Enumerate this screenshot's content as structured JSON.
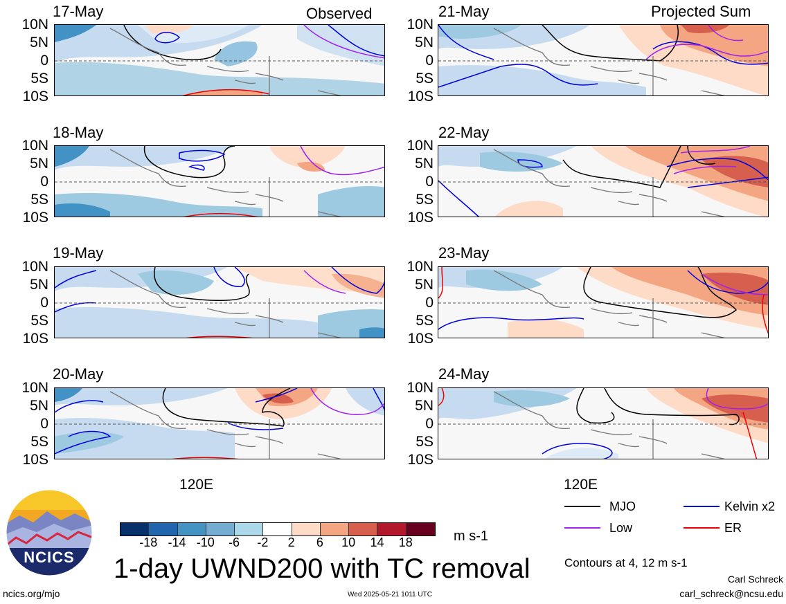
{
  "header": {
    "left": "Observed",
    "right": "Projected Sum"
  },
  "panels": [
    {
      "date": "17-May"
    },
    {
      "date": "18-May"
    },
    {
      "date": "19-May"
    },
    {
      "date": "20-May"
    },
    {
      "date": "21-May"
    },
    {
      "date": "22-May"
    },
    {
      "date": "23-May"
    },
    {
      "date": "24-May"
    }
  ],
  "lat_labels": [
    "10N",
    "5N",
    "0",
    "5S",
    "10S"
  ],
  "lon_label": "120E",
  "colorbar": {
    "ticks": [
      "-18",
      "-14",
      "-10",
      "-6",
      "-2",
      "2",
      "6",
      "10",
      "14",
      "18"
    ],
    "colors": [
      "#08306b",
      "#2166ac",
      "#4393c3",
      "#74add1",
      "#abd9e9",
      "#ffffff",
      "#fddbc7",
      "#f4a582",
      "#d6604d",
      "#b2182b",
      "#67001f"
    ],
    "units": "m s-1"
  },
  "legend": {
    "items": [
      {
        "label": "MJO",
        "color": "#000000"
      },
      {
        "label": "Kelvin x2",
        "color": "#0000dd"
      },
      {
        "label": "Low",
        "color": "#a020f0"
      },
      {
        "label": "ER",
        "color": "#ee0000"
      }
    ],
    "note": "Contours at 4, 12 m s-1"
  },
  "title": "1-day UWND200 with TC removal",
  "logo_text": "NCICS",
  "footer": {
    "url": "ncics.org/mjo",
    "timestamp": "Wed 2025-05-21 1011 UTC",
    "author": "Carl Schreck",
    "email": "carl_schreck@ncsu.edu"
  }
}
